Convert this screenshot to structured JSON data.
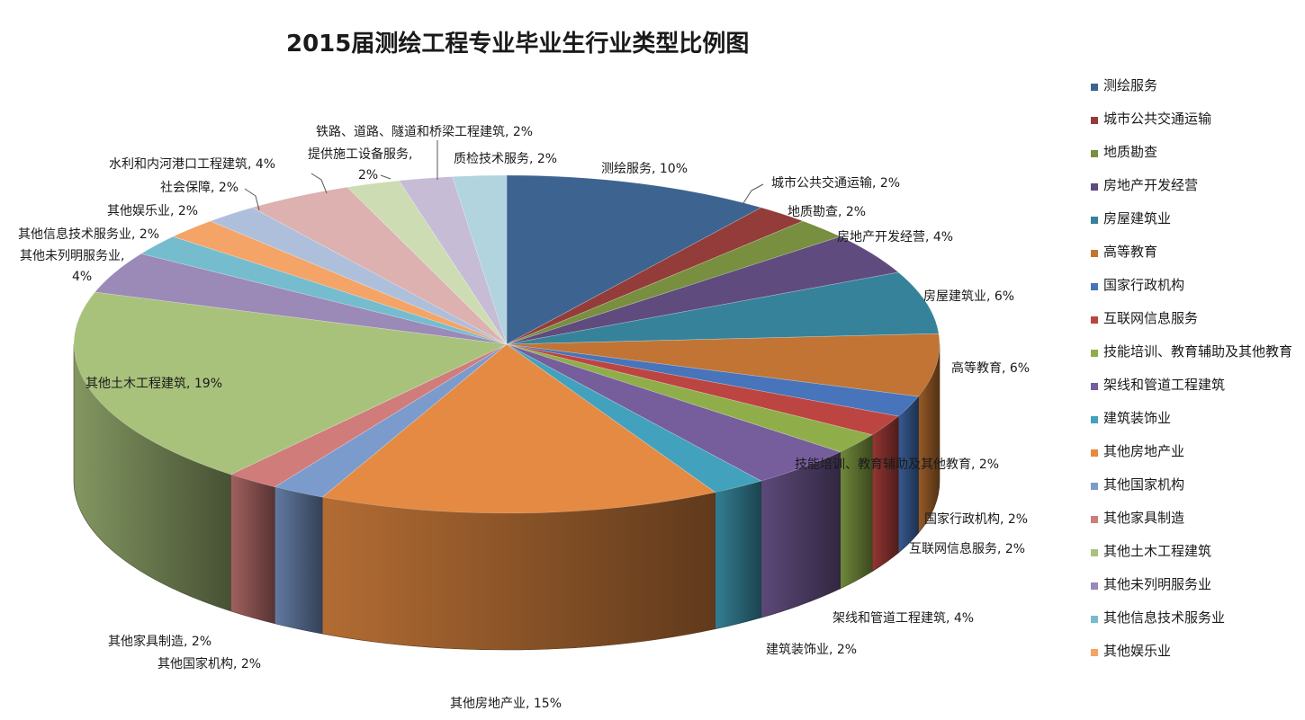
{
  "chart_data": {
    "type": "pie",
    "title": "2015届测绘工程专业毕业生行业类型比例图",
    "legend_position": "right",
    "slices": [
      {
        "name": "测绘服务",
        "value": 10,
        "label": "测绘服务, 10%",
        "color": "#3d6390"
      },
      {
        "name": "城市公共交通运输",
        "value": 2,
        "label": "城市公共交通运输, 2%",
        "color": "#933c39"
      },
      {
        "name": "地质勘查",
        "value": 2,
        "label": "地质勘查, 2%",
        "color": "#778f3f"
      },
      {
        "name": "房地产开发经营",
        "value": 4,
        "label": "房地产开发经营, 4%",
        "color": "#5f4b7e"
      },
      {
        "name": "房屋建筑业",
        "value": 6,
        "label": "房屋建筑业, 6%",
        "color": "#36829a"
      },
      {
        "name": "高等教育",
        "value": 6,
        "label": "高等教育, 6%",
        "color": "#c17433"
      },
      {
        "name": "国家行政机构",
        "value": 2,
        "label": "国家行政机构, 2%",
        "color": "#4774ba"
      },
      {
        "name": "互联网信息服务",
        "value": 2,
        "label": "互联网信息服务, 2%",
        "color": "#bc4541"
      },
      {
        "name": "技能培训、教育辅助及其他教育",
        "value": 2,
        "label": "技能培训、教育辅助及其他教育, 2%",
        "color": "#8fae4a"
      },
      {
        "name": "架线和管道工程建筑",
        "value": 4,
        "label": "架线和管道工程建筑, 4%",
        "color": "#765d9b"
      },
      {
        "name": "建筑装饰业",
        "value": 2,
        "label": "建筑装饰业, 2%",
        "color": "#42a2bd"
      },
      {
        "name": "其他房地产业",
        "value": 15,
        "label": "其他房地产业, 15%",
        "color": "#e58a42"
      },
      {
        "name": "其他国家机构",
        "value": 2,
        "label": "其他国家机构, 2%",
        "color": "#7c9bcd"
      },
      {
        "name": "其他家具制造",
        "value": 2,
        "label": "其他家具制造, 2%",
        "color": "#cf7c7a"
      },
      {
        "name": "其他土木工程建筑",
        "value": 19,
        "label": "其他土木工程建筑, 19%",
        "color": "#a8c27c"
      },
      {
        "name": "其他未列明服务业",
        "value": 4,
        "label": "其他未列明服务业,\n4%",
        "color": "#9b89b7"
      },
      {
        "name": "其他信息技术服务业",
        "value": 2,
        "label": "其他信息技术服务业, 2%",
        "color": "#76bccf"
      },
      {
        "name": "其他娱乐业",
        "value": 2,
        "label": "其他娱乐业, 2%",
        "color": "#f4a467"
      },
      {
        "name": "社会保障",
        "value": 2,
        "label": "社会保障, 2%",
        "color": "#aebfdc"
      },
      {
        "name": "水利和内河港口工程建筑",
        "value": 4,
        "label": "水利和内河港口工程建筑, 4%",
        "color": "#dcb1b0"
      },
      {
        "name": "提供施工设备服务",
        "value": 2,
        "label": "提供施工设备服务,\n2%",
        "color": "#cedcb3"
      },
      {
        "name": "铁路、道路、隧道和桥梁工程建筑",
        "value": 2,
        "label": "铁路、道路、隧道和桥梁工程建筑, 2%",
        "color": "#c6bcd6"
      },
      {
        "name": "质检技术服务",
        "value": 2,
        "label": "质检技术服务, 2%",
        "color": "#b1d4df"
      }
    ],
    "legend_entries": [
      "测绘服务",
      "城市公共交通运输",
      "地质勘查",
      "房地产开发经营",
      "房屋建筑业",
      "高等教育",
      "国家行政机构",
      "互联网信息服务",
      "技能培训、教育辅助及其他教育",
      "架线和管道工程建筑",
      "建筑装饰业",
      "其他房地产业",
      "其他国家机构",
      "其他家具制造",
      "其他土木工程建筑",
      "其他未列明服务业",
      "其他信息技术服务业",
      "其他娱乐业"
    ]
  }
}
